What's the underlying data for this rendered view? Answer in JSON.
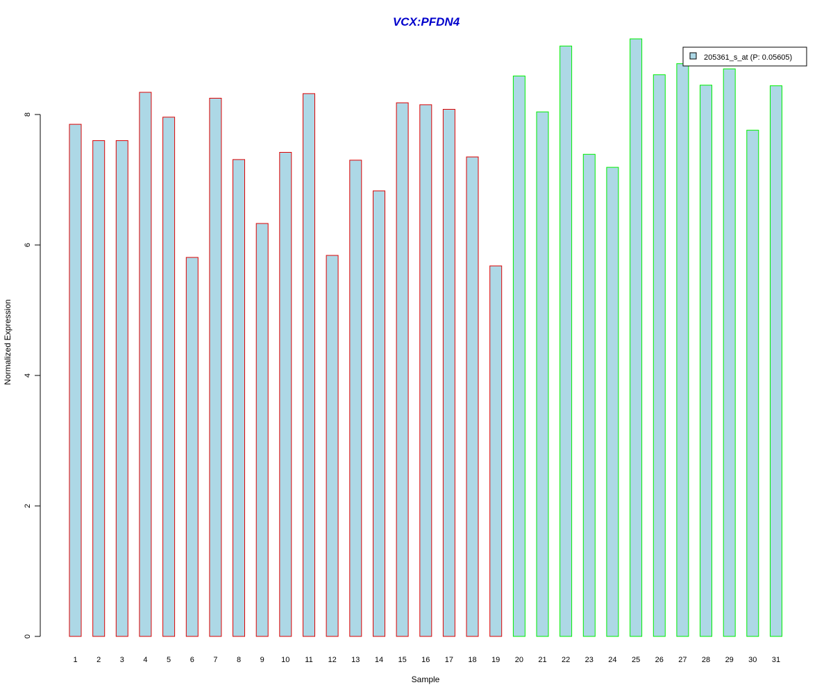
{
  "chart_data": {
    "type": "bar",
    "title": "VCX:PFDN4",
    "title_color": "#0000CC",
    "xlabel": "Sample",
    "ylabel": "Normalized Expression",
    "ylim": [
      0,
      9.2
    ],
    "yticks": [
      0,
      2,
      4,
      6,
      8
    ],
    "grid": false,
    "legend_position": "top-right",
    "categories": [
      "1",
      "2",
      "3",
      "4",
      "5",
      "6",
      "7",
      "8",
      "9",
      "10",
      "11",
      "12",
      "13",
      "14",
      "15",
      "16",
      "17",
      "18",
      "19",
      "20",
      "21",
      "22",
      "23",
      "24",
      "25",
      "26",
      "27",
      "28",
      "29",
      "30",
      "31"
    ],
    "series": [
      {
        "name": "205361_s_at (P: 0.05605)",
        "fill_color": "#ADD8E6",
        "values": [
          7.85,
          7.6,
          7.6,
          8.34,
          7.96,
          5.81,
          8.25,
          7.31,
          6.33,
          7.42,
          8.32,
          5.84,
          7.3,
          6.83,
          8.18,
          8.15,
          8.08,
          7.35,
          5.68,
          8.59,
          8.04,
          9.05,
          7.39,
          7.19,
          9.16,
          8.61,
          8.78,
          8.45,
          8.7,
          7.76,
          8.44
        ]
      }
    ],
    "group_border_colors": {
      "group_1": "#DD0000",
      "group_2": "#00EE00"
    },
    "group_1_samples": [
      1,
      19
    ],
    "group_2_samples": [
      20,
      31
    ]
  }
}
